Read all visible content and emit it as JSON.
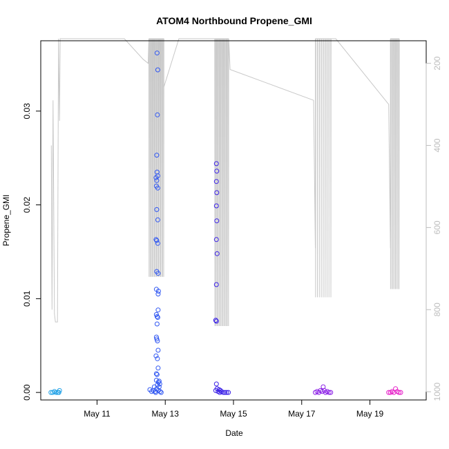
{
  "chart_data": {
    "type": "scatter",
    "title": "ATOM4 Northbound Propene_GMI",
    "xlabel": "Date",
    "ylabel": "Propene_GMI",
    "x_ticks": [
      {
        "day": 11,
        "label": "May 11"
      },
      {
        "day": 13,
        "label": "May 13"
      },
      {
        "day": 15,
        "label": "May 15"
      },
      {
        "day": 17,
        "label": "May 17"
      },
      {
        "day": 19,
        "label": "May 19"
      }
    ],
    "xlim_days": [
      9.35,
      20.65
    ],
    "ylim": [
      -0.0008,
      0.0375
    ],
    "y_ticks": [
      {
        "value": 0.0,
        "label": "0.00"
      },
      {
        "value": 0.01,
        "label": "0.01"
      },
      {
        "value": 0.02,
        "label": "0.02"
      },
      {
        "value": 0.03,
        "label": "0.03"
      }
    ],
    "right_axis": {
      "description": "flight altitude trace (grey line)",
      "inverted": true,
      "lim": [
        1020,
        145
      ],
      "ticks": [
        {
          "value": 200,
          "label": "200"
        },
        {
          "value": 400,
          "label": "400"
        },
        {
          "value": 600,
          "label": "600"
        },
        {
          "value": 800,
          "label": "800"
        },
        {
          "value": 1000,
          "label": "1000"
        }
      ]
    },
    "series": [
      {
        "color": "#1ea0e6",
        "points": [
          [
            9.65,
            0
          ],
          [
            9.7,
            0
          ],
          [
            9.75,
            0.0001
          ],
          [
            9.8,
            0
          ],
          [
            9.85,
            0
          ],
          [
            9.9,
            0.0002
          ],
          [
            9.88,
            0
          ]
        ]
      },
      {
        "color": "#2f56f2",
        "points": [
          [
            12.55,
            0.0003
          ],
          [
            12.6,
            0.0001
          ],
          [
            12.65,
            0.0002
          ],
          [
            12.68,
            0.0006
          ],
          [
            12.7,
            0.0001
          ],
          [
            12.72,
            0
          ],
          [
            12.75,
            0.0004
          ],
          [
            12.8,
            0.0002
          ],
          [
            12.85,
            0.0001
          ],
          [
            12.88,
            0
          ],
          [
            12.76,
            0.0362
          ],
          [
            12.78,
            0.0344
          ],
          [
            12.77,
            0.0296
          ],
          [
            12.75,
            0.0253
          ],
          [
            12.76,
            0.0235
          ],
          [
            12.78,
            0.0231
          ],
          [
            12.73,
            0.0229
          ],
          [
            12.75,
            0.0226
          ],
          [
            12.74,
            0.022
          ],
          [
            12.78,
            0.0218
          ],
          [
            12.75,
            0.0195
          ],
          [
            12.78,
            0.0184
          ],
          [
            12.73,
            0.0163
          ],
          [
            12.75,
            0.0162
          ],
          [
            12.78,
            0.0159
          ],
          [
            12.75,
            0.0129
          ],
          [
            12.79,
            0.0127
          ],
          [
            12.74,
            0.011
          ],
          [
            12.8,
            0.0108
          ],
          [
            12.79,
            0.0105
          ],
          [
            12.79,
            0.0088
          ],
          [
            12.74,
            0.0083
          ],
          [
            12.76,
            0.0081
          ],
          [
            12.78,
            0.008
          ],
          [
            12.76,
            0.0073
          ],
          [
            12.74,
            0.0059
          ],
          [
            12.75,
            0.0057
          ],
          [
            12.77,
            0.0055
          ],
          [
            12.79,
            0.0045
          ],
          [
            12.73,
            0.0039
          ],
          [
            12.77,
            0.0036
          ],
          [
            12.79,
            0.0026
          ],
          [
            12.74,
            0.002
          ],
          [
            12.76,
            0.0019
          ],
          [
            12.82,
            0.0012
          ],
          [
            12.84,
            0.0009
          ],
          [
            12.8,
            0.0011
          ],
          [
            12.82,
            0.0006
          ],
          [
            12.74,
            0.0013
          ],
          [
            12.77,
            0.0008
          ]
        ]
      },
      {
        "color": "#3a20e6",
        "points": [
          [
            14.5,
            0.0244
          ],
          [
            14.51,
            0.0236
          ],
          [
            14.5,
            0.0225
          ],
          [
            14.51,
            0.0213
          ],
          [
            14.5,
            0.0199
          ],
          [
            14.51,
            0.0183
          ],
          [
            14.5,
            0.0163
          ],
          [
            14.52,
            0.0148
          ],
          [
            14.5,
            0.0115
          ],
          [
            14.48,
            0.0077
          ],
          [
            14.5,
            0.0076
          ],
          [
            14.5,
            0.0009
          ],
          [
            14.52,
            0.0004
          ],
          [
            14.48,
            0.0002
          ],
          [
            14.55,
            0.0001
          ],
          [
            14.6,
            0
          ],
          [
            14.65,
            0.0001
          ],
          [
            14.7,
            0
          ],
          [
            14.75,
            0
          ],
          [
            14.8,
            0
          ],
          [
            14.85,
            0
          ],
          [
            14.58,
            0.0003
          ],
          [
            14.62,
            0.0002
          ]
        ]
      },
      {
        "color": "#8a1ee6",
        "points": [
          [
            17.4,
            0
          ],
          [
            17.45,
            0.0001
          ],
          [
            17.5,
            0
          ],
          [
            17.55,
            0.0002
          ],
          [
            17.6,
            0.0001
          ],
          [
            17.63,
            0.0006
          ],
          [
            17.66,
            0.0002
          ],
          [
            17.7,
            0
          ],
          [
            17.75,
            0.0001
          ],
          [
            17.8,
            0
          ],
          [
            17.85,
            0
          ]
        ]
      },
      {
        "color": "#e61ec8",
        "points": [
          [
            19.55,
            0
          ],
          [
            19.6,
            0
          ],
          [
            19.65,
            0.0001
          ],
          [
            19.7,
            0
          ],
          [
            19.75,
            0.0004
          ],
          [
            19.8,
            0.0001
          ],
          [
            19.85,
            0
          ],
          [
            19.9,
            0
          ]
        ]
      }
    ],
    "grid": false,
    "legend": "none"
  }
}
